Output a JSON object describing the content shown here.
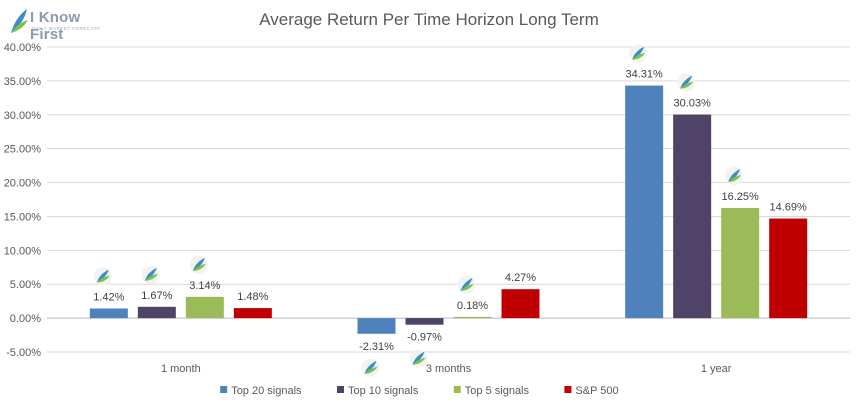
{
  "logo": {
    "name": "I Know First",
    "tagline": "DAILY MARKET FORECAST"
  },
  "chart_data": {
    "type": "bar",
    "title": "Average Return Per Time Horizon Long Term",
    "xlabel": "",
    "ylabel": "",
    "categories": [
      "1 month",
      "3 months",
      "1 year"
    ],
    "series": [
      {
        "name": "Top 20 signals",
        "color": "#4f81bd",
        "values": [
          1.42,
          -2.31,
          34.31
        ],
        "labels": [
          "1.42%",
          "-2.31%",
          "34.31%"
        ]
      },
      {
        "name": "Top 10 signals",
        "color": "#4f4367",
        "values": [
          1.67,
          -0.97,
          30.03
        ],
        "labels": [
          "1.67%",
          "-0.97%",
          "30.03%"
        ]
      },
      {
        "name": "Top 5 signals",
        "color": "#9bbb59",
        "values": [
          3.14,
          0.18,
          16.25
        ],
        "labels": [
          "3.14%",
          "0.18%",
          "16.25%"
        ]
      },
      {
        "name": "S&P 500",
        "color": "#c00000",
        "values": [
          1.48,
          4.27,
          14.69
        ],
        "labels": [
          "1.48%",
          "4.27%",
          "14.69%"
        ]
      }
    ],
    "icon_marks": [
      [
        0,
        1,
        2
      ],
      [
        0,
        1,
        2
      ],
      [
        0,
        1,
        2
      ]
    ],
    "ylim": [
      -5,
      40
    ],
    "yticks": [
      "-5.00%",
      "0.00%",
      "5.00%",
      "10.00%",
      "15.00%",
      "20.00%",
      "25.00%",
      "30.00%",
      "35.00%",
      "40.00%"
    ],
    "grid": true,
    "legend": "bottom",
    "icon": "i-know-first-leaf-icon"
  }
}
